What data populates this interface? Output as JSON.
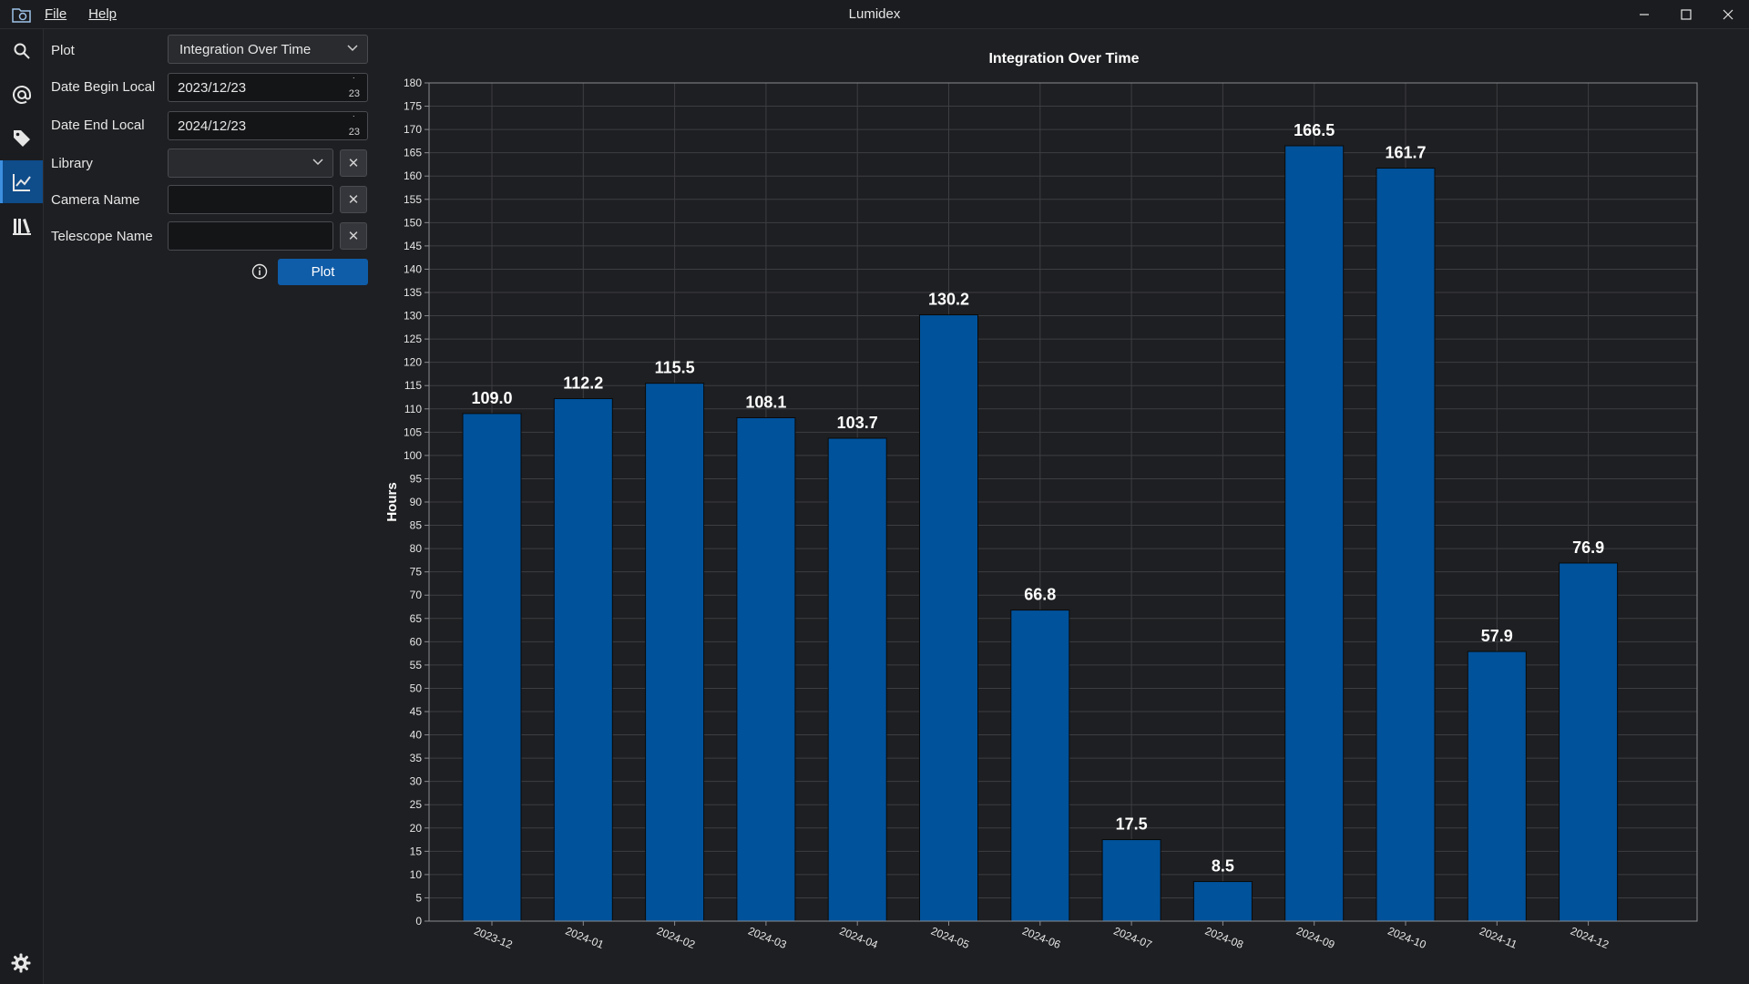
{
  "window": {
    "title": "Lumidex"
  },
  "menu": {
    "file": "File",
    "help": "Help"
  },
  "nav": {
    "icons": [
      "search-icon",
      "at-sign-icon",
      "tag-icon",
      "line-chart-icon",
      "library-icon"
    ],
    "active": "line-chart-icon",
    "settings": "gear-icon"
  },
  "form": {
    "plot_label": "Plot",
    "plot_value": "Integration Over Time",
    "date_begin_label": "Date Begin Local",
    "date_begin_value": "2023/12/23",
    "date_begin_spin": "23",
    "date_end_label": "Date End Local",
    "date_end_value": "2024/12/23",
    "date_end_spin": "23",
    "library_label": "Library",
    "library_value": "",
    "camera_label": "Camera Name",
    "camera_value": "",
    "telescope_label": "Telescope Name",
    "telescope_value": "",
    "clear_glyph": "✕",
    "plot_button": "Plot"
  },
  "colors": {
    "accent": "#0f5ca8",
    "bar": "#00529b",
    "active_nav": "#0f4c8a"
  },
  "chart_data": {
    "type": "bar",
    "title": "Integration Over Time",
    "xlabel": "",
    "ylabel": "Hours",
    "ylim": [
      0,
      180
    ],
    "ytick_step": 5,
    "grid": true,
    "categories": [
      "2023-12",
      "2024-01",
      "2024-02",
      "2024-03",
      "2024-04",
      "2024-05",
      "2024-06",
      "2024-07",
      "2024-08",
      "2024-09",
      "2024-10",
      "2024-11",
      "2024-12"
    ],
    "values": [
      109.0,
      112.2,
      115.5,
      108.1,
      103.7,
      130.2,
      66.8,
      17.5,
      8.5,
      166.5,
      161.7,
      57.9,
      76.9
    ],
    "value_labels": [
      "109.0",
      "112.2",
      "115.5",
      "108.1",
      "103.7",
      "130.2",
      "66.8",
      "17.5",
      "8.5",
      "166.5",
      "161.7",
      "57.9",
      "76.9"
    ]
  }
}
